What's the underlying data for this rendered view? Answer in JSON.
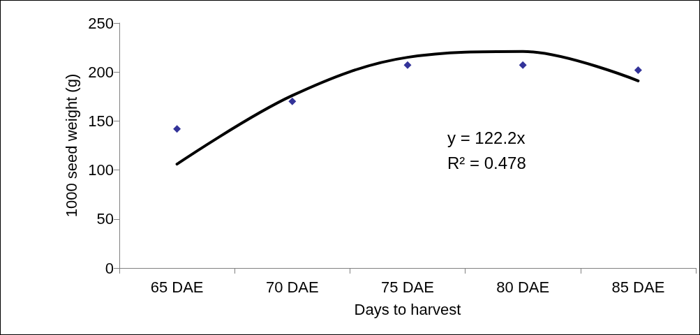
{
  "chart_data": {
    "type": "scatter",
    "xlabel": "Days to harvest",
    "ylabel": "1000 seed weight (g)",
    "categories": [
      "65 DAE",
      "70 DAE",
      "75 DAE",
      "80 DAE",
      "85 DAE"
    ],
    "series": [
      {
        "color": "#000080",
        "marker": "diamond",
        "values": [
          142,
          170,
          207,
          207,
          202
        ]
      },
      {
        "type": "line",
        "color": "#000000",
        "marker": "none",
        "values": [
          106,
          176,
          215,
          221,
          191
        ]
      }
    ],
    "ylim": [
      0,
      250
    ],
    "yticks": [
      0,
      50,
      100,
      150,
      200,
      250
    ],
    "grid": false,
    "annotations": [
      "y = 122.2x",
      "R² = 0.478"
    ]
  }
}
